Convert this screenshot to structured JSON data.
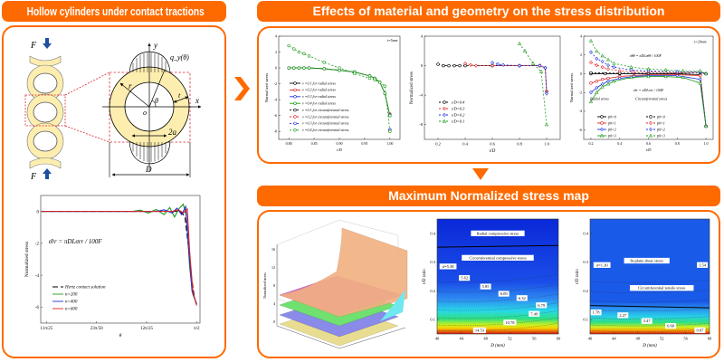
{
  "colors": {
    "accent": "#ff6a00",
    "ring": "#fdeeb0",
    "load_arrow": "#1f4fa0",
    "dashed_box": "#e0242a"
  },
  "panels": {
    "left": {
      "title": "Hollow cylinders under contact tractions"
    },
    "top": {
      "title": "Effects of material and geometry on the stress distribution"
    },
    "bottom": {
      "title": "Maximum Normalized stress map"
    }
  },
  "schematic": {
    "force": "F",
    "traction": "q_y(θ)",
    "radius": "r",
    "angle": "θ",
    "thickness": "t",
    "x_axis": "x",
    "y_axis": "y",
    "origin": "o",
    "contact_width": "2a",
    "diameter": "D"
  },
  "surface3d": {
    "zlabel": "Normalized stress",
    "zticks": [
      "0",
      "4",
      "8",
      "12",
      "16"
    ]
  },
  "chart_data": [
    {
      "type": "line",
      "ylabel": "Normalized stress",
      "xlabel": "θ",
      "xlim": [
        1.375,
        1.575
      ],
      "ylim": [
        -7,
        1
      ],
      "xticks": [
        1.3823,
        1.4451,
        1.508,
        1.5708
      ],
      "xtick_labels": [
        "11π/25",
        "23π/50",
        "12π/25",
        "π/2"
      ],
      "yticks": [
        0,
        -2,
        -4,
        -6
      ],
      "ytick_labels": [
        "0",
        "-2",
        "-4",
        "-6"
      ],
      "annotations": [
        {
          "text": "σ̄rr = πDLσrr / 100F",
          "x": 1.385,
          "y": -2
        }
      ],
      "series": [
        {
          "name": "Hertz contact solution",
          "color": "#000000",
          "dash": "6,3",
          "marker": "none",
          "x": [
            1.376,
            1.55,
            1.556,
            1.56,
            1.564,
            1.568,
            1.5708
          ],
          "y": [
            0,
            0,
            -0.3,
            -2,
            -4,
            -5.4,
            -5.9
          ]
        },
        {
          "name": "n=200",
          "color": "#1a9a1a",
          "dash": "",
          "marker": "none",
          "x": [
            1.376,
            1.49,
            1.5,
            1.51,
            1.52,
            1.53,
            1.537,
            1.543,
            1.549,
            1.554,
            1.558,
            1.562,
            1.566,
            1.5708
          ],
          "y": [
            0,
            0,
            0.08,
            -0.1,
            0.12,
            -0.2,
            0.25,
            -0.35,
            0.2,
            0.45,
            -0.3,
            -3.5,
            -5.2,
            -5.8
          ]
        },
        {
          "name": "n=400",
          "color": "#1f2fe0",
          "dash": "",
          "marker": "none",
          "x": [
            1.376,
            1.52,
            1.53,
            1.54,
            1.546,
            1.552,
            1.557,
            1.561,
            1.565,
            1.5708
          ],
          "y": [
            0,
            0,
            0.1,
            -0.1,
            0.2,
            -0.2,
            0.3,
            -2.5,
            -5,
            -5.8
          ]
        },
        {
          "name": "n=600",
          "color": "#e02020",
          "dash": "",
          "marker": "none",
          "x": [
            1.376,
            1.54,
            1.548,
            1.554,
            1.559,
            1.562,
            1.566,
            1.5708
          ],
          "y": [
            0,
            0,
            0.1,
            -0.1,
            0.15,
            -2.5,
            -5,
            -5.9
          ]
        }
      ]
    },
    {
      "type": "line",
      "ylabel": "Normalized stress",
      "xlabel": "t/D",
      "xlim": [
        0.78,
        1.02
      ],
      "ylim": [
        -9,
        4
      ],
      "xticks": [
        0.8,
        0.85,
        0.9,
        0.95,
        1.0
      ],
      "xtick_labels": [
        "0.80",
        "0.85",
        "0.90",
        "0.95",
        "1.00"
      ],
      "yticks": [
        4,
        2,
        0,
        -2,
        -4,
        -6,
        -8
      ],
      "ytick_labels": [
        "4",
        "2",
        "0",
        "-2",
        "-4",
        "-6",
        "-8"
      ],
      "annotations": [
        {
          "text": "t=5mm",
          "x": 1.005,
          "y": 3.3
        }
      ],
      "series": [
        {
          "name": "ν =0.1 for radial stress",
          "color": "#000000",
          "dash": "",
          "marker": "circle",
          "x": [
            0.8,
            0.81,
            0.82,
            0.83,
            0.84,
            0.87,
            0.9,
            0.93,
            0.96,
            0.97,
            0.98,
            0.99,
            1.0
          ],
          "y": [
            0,
            0,
            0,
            0,
            0,
            -0.1,
            -0.3,
            -0.5,
            -1,
            -1.3,
            -1.8,
            -3.2,
            -6
          ]
        },
        {
          "name": "ν =0.2 for radial stress",
          "color": "#e02020",
          "dash": "",
          "marker": "circle",
          "x": [
            1.0
          ],
          "y": [
            -5.8
          ]
        },
        {
          "name": "ν =0.3 for radial stress",
          "color": "#1f2fe0",
          "dash": "",
          "marker": "circle",
          "x": [
            1.0
          ],
          "y": [
            -5.9
          ]
        },
        {
          "name": "ν =0.4 for radial stress",
          "color": "#1a9a1a",
          "dash": "",
          "marker": "circle",
          "x": [
            0.8,
            0.81,
            0.82,
            0.83,
            0.84,
            0.87,
            0.9,
            0.93,
            0.96,
            0.97,
            0.98,
            0.99,
            1.0
          ],
          "y": [
            0,
            0,
            0,
            0,
            0,
            -0.1,
            -0.3,
            -0.5,
            -1,
            -1.3,
            -1.8,
            -3.2,
            -6
          ]
        },
        {
          "name": "ν =0.1 for circumferential stress",
          "color": "#000000",
          "dash": "2,2",
          "marker": "circle",
          "x": [
            1.0
          ],
          "y": [
            -7.8
          ]
        },
        {
          "name": "ν =0.2 for circumferential stress",
          "color": "#e02020",
          "dash": "2,2",
          "marker": "circle",
          "x": [
            1.0
          ],
          "y": [
            -7.9
          ]
        },
        {
          "name": "ν =0.3 for circumferential stress",
          "color": "#1f2fe0",
          "dash": "2,2",
          "marker": "circle",
          "x": [
            1.0
          ],
          "y": [
            -7.8
          ]
        },
        {
          "name": "ν =0.4 for circumferential stress",
          "color": "#1a9a1a",
          "dash": "2,2",
          "marker": "circle",
          "x": [
            0.8,
            0.81,
            0.82,
            0.83,
            0.84,
            0.87,
            0.9,
            0.93,
            0.96,
            0.97,
            0.98,
            0.99,
            1.0
          ],
          "y": [
            2.8,
            2.4,
            2.0,
            1.8,
            1.5,
            0.7,
            0,
            -0.7,
            -1.3,
            -1.5,
            -1.8,
            -2.3,
            -8
          ]
        }
      ]
    },
    {
      "type": "line",
      "ylabel": "Normalized stress",
      "xlabel": "t/D",
      "xlim": [
        0.1,
        1.1
      ],
      "ylim": [
        -10,
        4
      ],
      "xticks": [
        0.2,
        0.4,
        0.6,
        0.8,
        1.0
      ],
      "xtick_labels": [
        "0.2",
        "0.4",
        "0.6",
        "0.8",
        "1.0"
      ],
      "yticks": [
        4,
        0,
        -4,
        -8
      ],
      "ytick_labels": [
        "4",
        "0",
        "-4",
        "-8"
      ],
      "annotations": [],
      "series": [
        {
          "name": "t/D=0.4",
          "color": "#000000",
          "dash": "2,2",
          "marker": "circle",
          "x": [
            0.2,
            0.24,
            0.28,
            0.32,
            0.36,
            0.4,
            0.6,
            0.8,
            0.95,
            0.99,
            1.0
          ],
          "y": [
            0.2,
            0,
            0,
            0,
            0,
            0,
            0,
            0,
            0,
            -0.3,
            -3.5
          ]
        },
        {
          "name": "t/D=0.3",
          "color": "#e02020",
          "dash": "2,2",
          "marker": "diamond",
          "x": [
            0.4,
            0.44,
            0.48,
            0.6,
            0.8,
            0.95,
            0.99,
            1.0
          ],
          "y": [
            0.3,
            0.1,
            0,
            0,
            0,
            0,
            -0.3,
            -3.5
          ]
        },
        {
          "name": "t/D=0.2",
          "color": "#1f2fe0",
          "dash": "2,2",
          "marker": "diamond",
          "x": [
            0.6,
            0.64,
            0.68,
            0.8,
            0.95,
            0.99,
            1.0
          ],
          "y": [
            0.4,
            0.2,
            0.1,
            0,
            0,
            -0.3,
            -3.8
          ]
        },
        {
          "name": "t/D=0.1",
          "color": "#1a9a1a",
          "dash": "2,2",
          "marker": "triangle",
          "x": [
            0.8,
            0.84,
            0.9,
            0.96,
            1.0
          ],
          "y": [
            3,
            2,
            0.3,
            -0.8,
            -8
          ]
        }
      ]
    },
    {
      "type": "line",
      "ylabel": "Normalized stress",
      "xlabel": "t/D",
      "xlim": [
        0.15,
        1.05
      ],
      "ylim": [
        -7,
        4
      ],
      "xticks": [
        0.2,
        0.4,
        0.6,
        0.8,
        1.0
      ],
      "xtick_labels": [
        "0.2",
        "0.4",
        "0.6",
        "0.8",
        "1.0"
      ],
      "yticks": [
        4,
        2,
        0,
        -2,
        -4,
        -6
      ],
      "ytick_labels": [
        "4",
        "2",
        "0",
        "-2",
        "-4",
        "-6"
      ],
      "annotations": [
        {
          "text": "t=20mm",
          "x": 0.96,
          "y": 3.3
        },
        {
          "text": "σ̄θθ = πDLσθθ / 100F",
          "x": 0.58,
          "y": 1.8
        },
        {
          "text": "σ̄rr = πDLσrr / 100F",
          "x": 0.6,
          "y": -1.9
        },
        {
          "text": "Radial stress",
          "x": 0.26,
          "y": -2.8
        },
        {
          "text": "Circumferential stress",
          "x": 0.62,
          "y": -2.8
        }
      ],
      "series": [
        {
          "name": "p̄0=0",
          "color": "#000000",
          "dash": "",
          "marker": "circle",
          "x": [
            0.2,
            0.3,
            0.4,
            0.6,
            0.8,
            0.96,
            1.0
          ],
          "y": [
            0,
            0,
            0,
            0,
            0,
            -0.1,
            -5.6
          ]
        },
        {
          "name": "p̄0=1",
          "color": "#e02020",
          "dash": "",
          "marker": "circle",
          "x": [
            0.2,
            0.24,
            0.28,
            0.32,
            0.4,
            0.5,
            0.6,
            0.8,
            0.96,
            1.0
          ],
          "y": [
            -1,
            -0.8,
            -0.6,
            -0.5,
            -0.3,
            -0.2,
            -0.1,
            -0.1,
            -0.2,
            -5.6
          ]
        },
        {
          "name": "p̄0=2",
          "color": "#1f2fe0",
          "dash": "",
          "marker": "diamond",
          "x": [
            0.2,
            0.24,
            0.28,
            0.32,
            0.4,
            0.5,
            0.6,
            0.8,
            0.96,
            1.0
          ],
          "y": [
            -2,
            -1.5,
            -1.1,
            -0.8,
            -0.5,
            -0.3,
            -0.2,
            -0.2,
            -0.6,
            -5.6
          ]
        },
        {
          "name": "p̄0=3",
          "color": "#1a9a1a",
          "dash": "",
          "marker": "triangle",
          "x": [
            0.2,
            0.24,
            0.28,
            0.32,
            0.36,
            0.48,
            0.6,
            0.72,
            0.84,
            0.96,
            1.0
          ],
          "y": [
            -3,
            -2,
            -1.4,
            -1.1,
            -0.8,
            -0.4,
            -0.3,
            -0.3,
            -0.4,
            -1,
            -5.6
          ]
        },
        {
          "name": "p̄0=0",
          "color": "#000000",
          "dash": "2,2",
          "marker": "circle",
          "x": [
            0.2,
            0.4,
            0.6,
            0.8,
            0.96,
            1.0
          ],
          "y": [
            0.1,
            0.05,
            0.05,
            0.05,
            0.1,
            0
          ]
        },
        {
          "name": "p̄0=1",
          "color": "#e02020",
          "dash": "2,2",
          "marker": "diamond",
          "x": [
            0.2,
            0.24,
            0.28,
            0.32,
            0.4,
            0.5,
            0.6,
            0.8,
            0.96,
            1.0
          ],
          "y": [
            1.2,
            0.9,
            0.7,
            0.5,
            0.3,
            0.2,
            0.2,
            0.1,
            0.2,
            0
          ]
        },
        {
          "name": "p̄0=2",
          "color": "#1f2fe0",
          "dash": "2,2",
          "marker": "diamond",
          "x": [
            0.2,
            0.24,
            0.28,
            0.32,
            0.36,
            0.48,
            0.6,
            0.8,
            0.96,
            1.0
          ],
          "y": [
            2.3,
            1.6,
            1.3,
            0.9,
            0.7,
            0.4,
            0.3,
            0.2,
            0.2,
            0
          ]
        },
        {
          "name": "p̄0=3",
          "color": "#1a9a1a",
          "dash": "2,2",
          "marker": "triangle",
          "x": [
            0.2,
            0.24,
            0.28,
            0.32,
            0.36,
            0.48,
            0.6,
            0.72,
            0.84,
            0.96,
            1.0
          ],
          "y": [
            3.5,
            2.4,
            1.9,
            1.5,
            1.1,
            0.7,
            0.5,
            0.4,
            0.3,
            0.3,
            0
          ]
        }
      ]
    },
    {
      "type": "heatmap",
      "ylabel": "t/D ratio",
      "xlabel": "D (mm)",
      "xlim": [
        40,
        60
      ],
      "ylim": [
        0.05,
        0.45
      ],
      "xticks": [
        40,
        44,
        48,
        52,
        56,
        60
      ],
      "xtick_labels": [
        "40",
        "44",
        "48",
        "52",
        "56",
        "60"
      ],
      "yticks": [
        0.1,
        0.2,
        0.3,
        0.4
      ],
      "ytick_labels": [
        "0.1",
        "0.2",
        "0.3",
        "0.4"
      ],
      "colormap": [
        [
          "0.0",
          "#0a28d8"
        ],
        [
          "0.55",
          "#1a4ee8"
        ],
        [
          "0.7",
          "#2e8cf0"
        ],
        [
          "0.8",
          "#28d8e8"
        ],
        [
          "0.87",
          "#30e080"
        ],
        [
          "0.92",
          "#c8f020"
        ],
        [
          "0.95",
          "#f8d000"
        ],
        [
          "1.0",
          "#d81010"
        ]
      ],
      "boundary": {
        "x": [
          40,
          60
        ],
        "y": [
          0.352,
          0.358
        ]
      },
      "annotations": [
        {
          "text": "Radial compressive stress",
          "x": 50,
          "y": 0.4
        },
        {
          "text": "Circumferential compressive stress",
          "x": 50,
          "y": 0.315
        },
        {
          "text": "σ̄=5.38",
          "x": 41.8,
          "y": 0.285
        },
        {
          "text": "5.62",
          "x": 44.5,
          "y": 0.245
        },
        {
          "text": "5.85",
          "x": 48,
          "y": 0.215
        },
        {
          "text": "6.09",
          "x": 51,
          "y": 0.19
        },
        {
          "text": "6.32",
          "x": 54,
          "y": 0.175
        },
        {
          "text": "6.79",
          "x": 57.2,
          "y": 0.15
        },
        {
          "text": "7.49",
          "x": 56,
          "y": 0.12
        },
        {
          "text": "10.78",
          "x": 52,
          "y": 0.09
        },
        {
          "text": "14.53",
          "x": 47,
          "y": 0.063
        }
      ]
    },
    {
      "type": "heatmap",
      "ylabel": "t/D ratio",
      "xlabel": "D (mm)",
      "xlim": [
        40,
        60
      ],
      "ylim": [
        0.05,
        0.45
      ],
      "xticks": [
        40,
        44,
        48,
        52,
        56,
        60
      ],
      "xtick_labels": [
        "40",
        "44",
        "48",
        "52",
        "56",
        "60"
      ],
      "yticks": [
        0.1,
        0.2,
        0.3,
        0.4
      ],
      "ytick_labels": [
        "0.1",
        "0.2",
        "0.3",
        "0.4"
      ],
      "colormap": [
        [
          "0.0",
          "#1a5ae8"
        ],
        [
          "0.72",
          "#1a5ae8"
        ],
        [
          "0.78",
          "#2a90f0"
        ],
        [
          "0.85",
          "#28d0e8"
        ],
        [
          "0.9",
          "#30e080"
        ],
        [
          "0.94",
          "#d0f020"
        ],
        [
          "0.97",
          "#f8a000"
        ],
        [
          "1.0",
          "#d81010"
        ]
      ],
      "boundary": {
        "x": [
          40,
          60
        ],
        "y": [
          0.149,
          0.141
        ]
      },
      "annotations": [
        {
          "text": "In-plane shear stress",
          "x": 49.5,
          "y": 0.305
        },
        {
          "text": "σ̄=1.30",
          "x": 42,
          "y": 0.29
        },
        {
          "text": "1.54",
          "x": 58.8,
          "y": 0.29
        },
        {
          "text": "Circumferential tensile stress",
          "x": 52,
          "y": 0.21
        },
        {
          "text": "1.78",
          "x": 41,
          "y": 0.125
        },
        {
          "text": "2.27",
          "x": 45.5,
          "y": 0.115
        },
        {
          "text": "3.47",
          "x": 49.5,
          "y": 0.095
        },
        {
          "text": "6.60",
          "x": 53.5,
          "y": 0.078
        },
        {
          "text": "9.97",
          "x": 58.4,
          "y": 0.063
        }
      ]
    }
  ]
}
